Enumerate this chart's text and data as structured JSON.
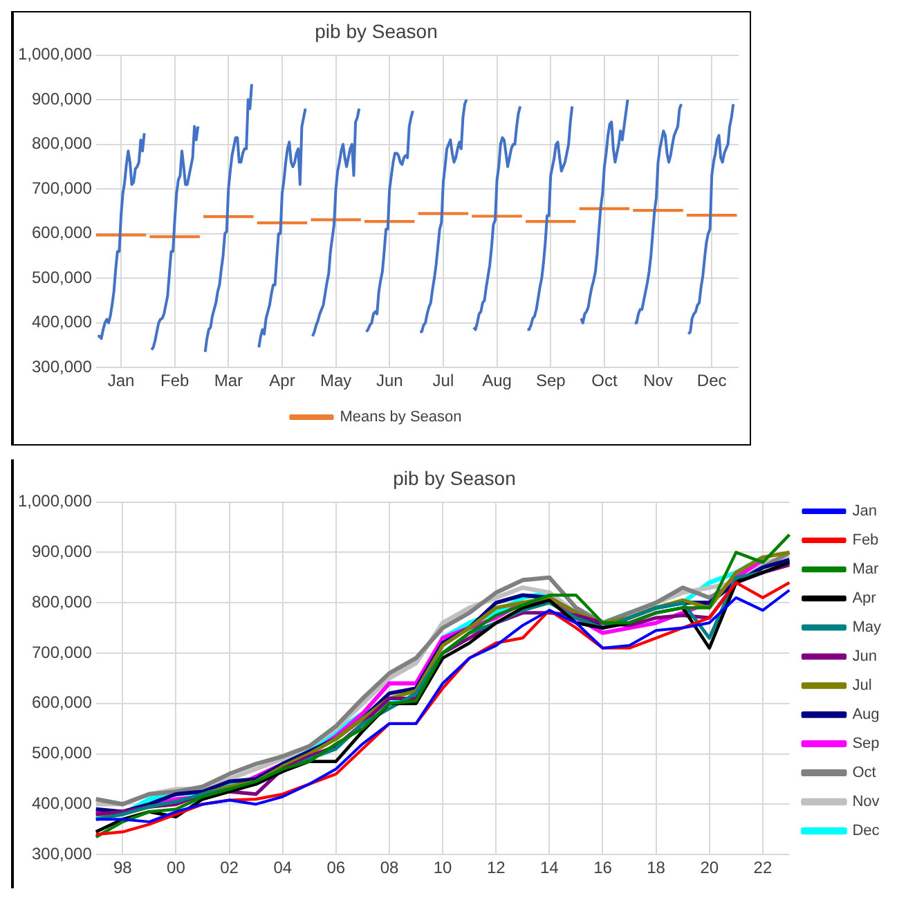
{
  "chart_data": [
    {
      "type": "line",
      "title": "pib by Season",
      "categories": [
        null,
        null,
        null,
        null,
        null,
        null,
        null,
        null,
        null,
        null,
        null,
        null,
        null,
        null,
        "Jan",
        null,
        null,
        null,
        null,
        null,
        null,
        null,
        null,
        null,
        null,
        null,
        null,
        null,
        null,
        null,
        null,
        null,
        null,
        null,
        null,
        null,
        null,
        null,
        null,
        null,
        null,
        null,
        null,
        null,
        "Feb",
        null,
        null,
        null,
        null,
        null,
        null,
        null,
        null,
        null,
        null,
        null,
        null,
        null,
        null,
        null,
        null,
        null,
        null,
        null,
        null,
        null,
        null,
        null,
        null,
        null,
        null,
        null,
        null,
        null,
        "Mar",
        null,
        null,
        null,
        null,
        null,
        null,
        null,
        null,
        null,
        null,
        null,
        null,
        null,
        null,
        null,
        null,
        null,
        null,
        null,
        null,
        null,
        null,
        null,
        null,
        null,
        null,
        null,
        null,
        null,
        "Apr",
        null,
        null,
        null,
        null,
        null,
        null,
        null,
        null,
        null,
        null,
        null,
        null,
        null,
        null,
        null,
        null,
        null,
        null,
        null,
        null,
        null,
        null,
        null,
        null,
        null,
        null,
        null,
        null,
        null,
        "May",
        null,
        null,
        null,
        null,
        null,
        null,
        null,
        null,
        null,
        null,
        null,
        null,
        null,
        null,
        null,
        null,
        null,
        null,
        null,
        null,
        null,
        null,
        null,
        null,
        null,
        null,
        null,
        null,
        null,
        "Jun",
        null,
        null,
        null,
        null,
        null,
        null,
        null,
        null,
        null,
        null,
        null,
        null,
        null,
        null,
        null,
        null,
        null,
        null,
        null,
        null,
        null,
        null,
        null,
        null,
        null,
        null,
        null,
        null,
        null,
        "Jul",
        null,
        null,
        null,
        null,
        null,
        null,
        null,
        null,
        null,
        null,
        null,
        null,
        null,
        null,
        null,
        null,
        null,
        null,
        null,
        null,
        null,
        null,
        null,
        null,
        null,
        null,
        null,
        null,
        null,
        "Aug",
        null,
        null,
        null,
        null,
        null,
        null,
        null,
        null,
        null,
        null,
        null,
        null,
        null,
        null,
        null,
        null,
        null,
        null,
        null,
        null,
        null,
        null,
        null,
        null,
        null,
        null,
        null,
        null,
        null,
        "Sep",
        null,
        null,
        null,
        null,
        null,
        null,
        null,
        null,
        null,
        null,
        null,
        null,
        null,
        null,
        null,
        null,
        null,
        null,
        null,
        null,
        null,
        null,
        null,
        null,
        null,
        null,
        null,
        null,
        null,
        "Oct",
        null,
        null,
        null,
        null,
        null,
        null,
        null,
        null,
        null,
        null,
        null,
        null,
        null,
        null,
        null,
        null,
        null,
        null,
        null,
        null,
        null,
        null,
        null,
        null,
        null,
        null,
        null,
        null,
        null,
        "Nov",
        null,
        null,
        null,
        null,
        null,
        null,
        null,
        null,
        null,
        null,
        null,
        null,
        null,
        null,
        null,
        null,
        null,
        null,
        null,
        null,
        null,
        null,
        null,
        null,
        null,
        null,
        null,
        null,
        null,
        "Dec",
        null,
        null,
        null,
        null,
        null,
        null,
        null,
        null,
        null,
        null,
        null,
        null,
        null,
        null,
        null
      ],
      "series": [
        {
          "color": "#4472c4",
          "values": [
            null,
            370000,
            370000,
            365000,
            385000,
            400000,
            408000,
            400000,
            415000,
            440000,
            470000,
            520000,
            560000,
            560000,
            640000,
            690000,
            715000,
            755000,
            785000,
            760000,
            710000,
            715000,
            745000,
            750000,
            760000,
            810000,
            785000,
            825000,
            null,
            null,
            null,
            340000,
            345000,
            360000,
            380000,
            400000,
            408000,
            410000,
            420000,
            440000,
            460000,
            510000,
            560000,
            560000,
            630000,
            690000,
            720000,
            730000,
            785000,
            750000,
            710000,
            710000,
            730000,
            750000,
            770000,
            840000,
            810000,
            840000,
            null,
            null,
            null,
            335000,
            365000,
            385000,
            390000,
            415000,
            430000,
            445000,
            470000,
            485000,
            520000,
            550000,
            600000,
            605000,
            700000,
            740000,
            775000,
            795000,
            815000,
            815000,
            760000,
            760000,
            780000,
            790000,
            790000,
            900000,
            880000,
            935000,
            null,
            null,
            null,
            345000,
            370000,
            385000,
            375000,
            410000,
            425000,
            440000,
            465000,
            485000,
            485000,
            545000,
            600000,
            600000,
            690000,
            720000,
            760000,
            790000,
            805000,
            760000,
            750000,
            760000,
            780000,
            790000,
            710000,
            840000,
            860000,
            880000,
            null,
            null,
            null,
            370000,
            380000,
            395000,
            405000,
            420000,
            430000,
            440000,
            465000,
            490000,
            510000,
            560000,
            590000,
            620000,
            700000,
            740000,
            760000,
            785000,
            800000,
            770000,
            750000,
            770000,
            790000,
            800000,
            730000,
            850000,
            860000,
            880000,
            null,
            null,
            null,
            380000,
            385000,
            395000,
            400000,
            420000,
            425000,
            420000,
            470000,
            495000,
            515000,
            560000,
            610000,
            610000,
            700000,
            730000,
            760000,
            780000,
            780000,
            775000,
            760000,
            755000,
            770000,
            775000,
            770000,
            840000,
            860000,
            875000,
            null,
            null,
            null,
            380000,
            380000,
            395000,
            400000,
            420000,
            435000,
            445000,
            475000,
            500000,
            530000,
            570000,
            610000,
            625000,
            715000,
            750000,
            790000,
            800000,
            810000,
            780000,
            760000,
            770000,
            790000,
            805000,
            790000,
            860000,
            890000,
            900000,
            null,
            null,
            null,
            390000,
            385000,
            400000,
            420000,
            425000,
            445000,
            450000,
            480000,
            505000,
            530000,
            570000,
            620000,
            630000,
            720000,
            750000,
            800000,
            815000,
            810000,
            780000,
            750000,
            770000,
            790000,
            800000,
            800000,
            840000,
            870000,
            885000,
            null,
            null,
            null,
            385000,
            385000,
            395000,
            410000,
            415000,
            430000,
            455000,
            480000,
            500000,
            535000,
            580000,
            640000,
            640000,
            730000,
            750000,
            770000,
            800000,
            805000,
            770000,
            740000,
            750000,
            760000,
            780000,
            800000,
            850000,
            885000,
            null,
            null,
            null,
            null,
            410000,
            400000,
            420000,
            425000,
            435000,
            460000,
            480000,
            495000,
            515000,
            555000,
            610000,
            660000,
            690000,
            750000,
            780000,
            820000,
            845000,
            850000,
            790000,
            760000,
            780000,
            800000,
            830000,
            810000,
            840000,
            870000,
            900000,
            null,
            null,
            null,
            400000,
            400000,
            420000,
            430000,
            430000,
            450000,
            470000,
            490000,
            515000,
            550000,
            600000,
            650000,
            680000,
            760000,
            790000,
            810000,
            830000,
            820000,
            780000,
            760000,
            775000,
            800000,
            820000,
            830000,
            840000,
            880000,
            890000,
            null,
            null,
            null,
            375000,
            380000,
            410000,
            420000,
            425000,
            440000,
            445000,
            480000,
            505000,
            545000,
            580000,
            600000,
            610000,
            730000,
            760000,
            780000,
            810000,
            820000,
            770000,
            760000,
            780000,
            790000,
            800000,
            840000,
            860000,
            890000,
            null,
            null,
            null
          ]
        },
        {
          "name": "Means by Season",
          "color": "#ed7d31",
          "values": [
            597000,
            597000,
            597000,
            597000,
            597000,
            597000,
            597000,
            597000,
            597000,
            597000,
            597000,
            597000,
            597000,
            597000,
            597000,
            597000,
            597000,
            597000,
            597000,
            597000,
            597000,
            597000,
            597000,
            597000,
            597000,
            597000,
            597000,
            597000,
            597000,
            null,
            593000,
            593000,
            593000,
            593000,
            593000,
            593000,
            593000,
            593000,
            593000,
            593000,
            593000,
            593000,
            593000,
            593000,
            593000,
            593000,
            593000,
            593000,
            593000,
            593000,
            593000,
            593000,
            593000,
            593000,
            593000,
            593000,
            593000,
            593000,
            593000,
            null,
            638000,
            638000,
            638000,
            638000,
            638000,
            638000,
            638000,
            638000,
            638000,
            638000,
            638000,
            638000,
            638000,
            638000,
            638000,
            638000,
            638000,
            638000,
            638000,
            638000,
            638000,
            638000,
            638000,
            638000,
            638000,
            638000,
            638000,
            638000,
            638000,
            null,
            624000,
            624000,
            624000,
            624000,
            624000,
            624000,
            624000,
            624000,
            624000,
            624000,
            624000,
            624000,
            624000,
            624000,
            624000,
            624000,
            624000,
            624000,
            624000,
            624000,
            624000,
            624000,
            624000,
            624000,
            624000,
            624000,
            624000,
            624000,
            624000,
            null,
            631000,
            631000,
            631000,
            631000,
            631000,
            631000,
            631000,
            631000,
            631000,
            631000,
            631000,
            631000,
            631000,
            631000,
            631000,
            631000,
            631000,
            631000,
            631000,
            631000,
            631000,
            631000,
            631000,
            631000,
            631000,
            631000,
            631000,
            631000,
            631000,
            null,
            627000,
            627000,
            627000,
            627000,
            627000,
            627000,
            627000,
            627000,
            627000,
            627000,
            627000,
            627000,
            627000,
            627000,
            627000,
            627000,
            627000,
            627000,
            627000,
            627000,
            627000,
            627000,
            627000,
            627000,
            627000,
            627000,
            627000,
            627000,
            627000,
            null,
            645000,
            645000,
            645000,
            645000,
            645000,
            645000,
            645000,
            645000,
            645000,
            645000,
            645000,
            645000,
            645000,
            645000,
            645000,
            645000,
            645000,
            645000,
            645000,
            645000,
            645000,
            645000,
            645000,
            645000,
            645000,
            645000,
            645000,
            645000,
            645000,
            null,
            639000,
            639000,
            639000,
            639000,
            639000,
            639000,
            639000,
            639000,
            639000,
            639000,
            639000,
            639000,
            639000,
            639000,
            639000,
            639000,
            639000,
            639000,
            639000,
            639000,
            639000,
            639000,
            639000,
            639000,
            639000,
            639000,
            639000,
            639000,
            639000,
            null,
            627000,
            627000,
            627000,
            627000,
            627000,
            627000,
            627000,
            627000,
            627000,
            627000,
            627000,
            627000,
            627000,
            627000,
            627000,
            627000,
            627000,
            627000,
            627000,
            627000,
            627000,
            627000,
            627000,
            627000,
            627000,
            627000,
            627000,
            627000,
            627000,
            null,
            656000,
            656000,
            656000,
            656000,
            656000,
            656000,
            656000,
            656000,
            656000,
            656000,
            656000,
            656000,
            656000,
            656000,
            656000,
            656000,
            656000,
            656000,
            656000,
            656000,
            656000,
            656000,
            656000,
            656000,
            656000,
            656000,
            656000,
            656000,
            656000,
            null,
            652000,
            652000,
            652000,
            652000,
            652000,
            652000,
            652000,
            652000,
            652000,
            652000,
            652000,
            652000,
            652000,
            652000,
            652000,
            652000,
            652000,
            652000,
            652000,
            652000,
            652000,
            652000,
            652000,
            652000,
            652000,
            652000,
            652000,
            652000,
            652000,
            null,
            641000,
            641000,
            641000,
            641000,
            641000,
            641000,
            641000,
            641000,
            641000,
            641000,
            641000,
            641000,
            641000,
            641000,
            641000,
            641000,
            641000,
            641000,
            641000,
            641000,
            641000,
            641000,
            641000,
            641000,
            641000,
            641000,
            641000,
            641000,
            641000,
            null
          ]
        }
      ],
      "ylim": [
        300000,
        1000000
      ],
      "yticks": [
        {
          "value": 300000,
          "label": "300,000"
        },
        {
          "value": 400000,
          "label": "400,000"
        },
        {
          "value": 500000,
          "label": "500,000"
        },
        {
          "value": 600000,
          "label": "600,000"
        },
        {
          "value": 700000,
          "label": "700,000"
        },
        {
          "value": 800000,
          "label": "800,000"
        },
        {
          "value": 900000,
          "label": "900,000"
        },
        {
          "value": 1000000,
          "label": "1,000,000"
        }
      ],
      "grid": true,
      "legend": "bottom"
    },
    {
      "type": "line",
      "title": "pib by Season",
      "categories": [
        null,
        "98",
        null,
        "00",
        null,
        "02",
        null,
        "04",
        null,
        "06",
        null,
        "08",
        null,
        "10",
        null,
        "12",
        null,
        "14",
        null,
        "16",
        null,
        "18",
        null,
        "20",
        null,
        "22",
        null
      ],
      "series": [
        {
          "name": "Jan",
          "color": "#0000ff",
          "values": [
            370000,
            370000,
            365000,
            385000,
            400000,
            408000,
            400000,
            415000,
            440000,
            470000,
            520000,
            560000,
            560000,
            640000,
            690000,
            715000,
            755000,
            785000,
            760000,
            710000,
            715000,
            745000,
            750000,
            760000,
            810000,
            785000,
            825000
          ]
        },
        {
          "name": "Feb",
          "color": "#ff0000",
          "values": [
            340000,
            345000,
            360000,
            380000,
            400000,
            408000,
            410000,
            420000,
            440000,
            460000,
            510000,
            560000,
            560000,
            630000,
            690000,
            720000,
            730000,
            785000,
            750000,
            710000,
            710000,
            730000,
            750000,
            770000,
            840000,
            810000,
            840000
          ]
        },
        {
          "name": "Mar",
          "color": "#008000",
          "values": [
            335000,
            365000,
            385000,
            390000,
            415000,
            430000,
            445000,
            470000,
            485000,
            520000,
            550000,
            600000,
            605000,
            700000,
            740000,
            775000,
            795000,
            815000,
            815000,
            760000,
            760000,
            780000,
            790000,
            790000,
            900000,
            880000,
            935000
          ]
        },
        {
          "name": "Apr",
          "color": "#000000",
          "values": [
            345000,
            370000,
            385000,
            375000,
            410000,
            425000,
            440000,
            465000,
            485000,
            485000,
            545000,
            600000,
            600000,
            690000,
            720000,
            760000,
            790000,
            805000,
            760000,
            750000,
            760000,
            780000,
            790000,
            710000,
            840000,
            860000,
            880000
          ]
        },
        {
          "name": "May",
          "color": "#008080",
          "values": [
            370000,
            380000,
            395000,
            405000,
            420000,
            430000,
            440000,
            465000,
            490000,
            510000,
            560000,
            590000,
            620000,
            700000,
            740000,
            760000,
            785000,
            800000,
            770000,
            750000,
            770000,
            790000,
            800000,
            730000,
            850000,
            860000,
            880000
          ]
        },
        {
          "name": "Jun",
          "color": "#800080",
          "values": [
            380000,
            385000,
            395000,
            400000,
            420000,
            425000,
            420000,
            470000,
            495000,
            515000,
            560000,
            610000,
            610000,
            700000,
            730000,
            760000,
            780000,
            780000,
            775000,
            760000,
            755000,
            770000,
            775000,
            770000,
            840000,
            860000,
            875000
          ]
        },
        {
          "name": "Jul",
          "color": "#808000",
          "values": [
            380000,
            380000,
            395000,
            400000,
            420000,
            435000,
            445000,
            475000,
            500000,
            530000,
            570000,
            610000,
            625000,
            715000,
            750000,
            790000,
            800000,
            810000,
            780000,
            760000,
            770000,
            790000,
            805000,
            790000,
            860000,
            890000,
            900000
          ]
        },
        {
          "name": "Aug",
          "color": "#000080",
          "values": [
            390000,
            385000,
            400000,
            420000,
            425000,
            445000,
            450000,
            480000,
            505000,
            530000,
            570000,
            620000,
            630000,
            720000,
            750000,
            800000,
            815000,
            810000,
            780000,
            750000,
            770000,
            790000,
            800000,
            800000,
            840000,
            870000,
            885000
          ]
        },
        {
          "name": "Sep",
          "color": "#ff00ff",
          "values": [
            385000,
            385000,
            395000,
            410000,
            415000,
            430000,
            455000,
            480000,
            500000,
            535000,
            580000,
            640000,
            640000,
            730000,
            750000,
            770000,
            800000,
            805000,
            770000,
            740000,
            750000,
            760000,
            780000,
            800000,
            850000,
            885000,
            null
          ]
        },
        {
          "name": "Oct",
          "color": "#808080",
          "values": [
            410000,
            400000,
            420000,
            425000,
            435000,
            460000,
            480000,
            495000,
            515000,
            555000,
            610000,
            660000,
            690000,
            750000,
            780000,
            820000,
            845000,
            850000,
            790000,
            760000,
            780000,
            800000,
            830000,
            810000,
            840000,
            870000,
            900000
          ]
        },
        {
          "name": "Nov",
          "color": "#c0c0c0",
          "values": [
            400000,
            400000,
            420000,
            430000,
            430000,
            450000,
            470000,
            490000,
            515000,
            550000,
            600000,
            650000,
            680000,
            760000,
            790000,
            810000,
            830000,
            820000,
            780000,
            760000,
            775000,
            800000,
            820000,
            830000,
            840000,
            880000,
            890000
          ]
        },
        {
          "name": "Dec",
          "color": "#00ffff",
          "values": [
            375000,
            380000,
            410000,
            420000,
            425000,
            440000,
            445000,
            480000,
            505000,
            545000,
            580000,
            600000,
            610000,
            730000,
            760000,
            780000,
            810000,
            820000,
            770000,
            760000,
            780000,
            790000,
            800000,
            840000,
            860000,
            890000,
            null
          ]
        }
      ],
      "ylim": [
        300000,
        1000000
      ],
      "yticks": [
        {
          "value": 300000,
          "label": "300,000"
        },
        {
          "value": 400000,
          "label": "400,000"
        },
        {
          "value": 500000,
          "label": "500,000"
        },
        {
          "value": 600000,
          "label": "600,000"
        },
        {
          "value": 700000,
          "label": "700,000"
        },
        {
          "value": 800000,
          "label": "800,000"
        },
        {
          "value": 900000,
          "label": "900,000"
        },
        {
          "value": 1000000,
          "label": "1,000,000"
        }
      ],
      "grid": true,
      "legend": "right"
    }
  ]
}
